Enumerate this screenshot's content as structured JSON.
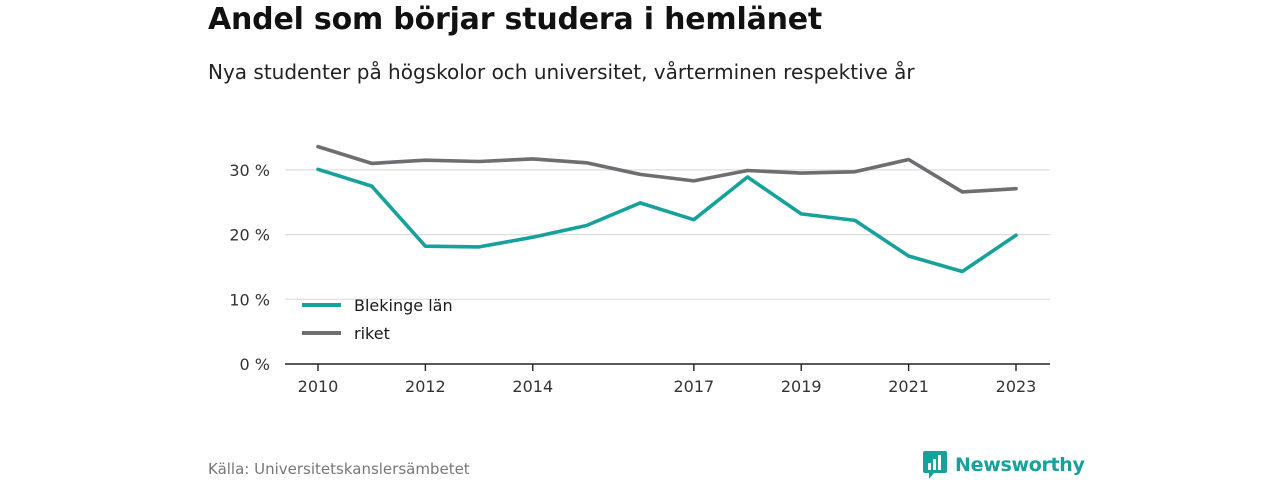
{
  "header": {
    "title": "Andel som börjar studera i hemlänet",
    "subtitle": "Nya studenter på högskolor och universitet, vårterminen respektive år"
  },
  "footer": {
    "source": "Källa: Universitetskanslersämbetet",
    "brand": "Newsworthy",
    "brand_icon": "bar-chart-speech-icon"
  },
  "colors": {
    "blekinge": "#16a29a",
    "riket": "#6d6d72",
    "grid": "#dddddd",
    "axis": "#222222",
    "brand": "#16a29a"
  },
  "chart_data": {
    "type": "line",
    "title": "Andel som börjar studera i hemlänet",
    "subtitle": "Nya studenter på högskolor och universitet, vårterminen respektive år",
    "x": [
      2010,
      2011,
      2012,
      2013,
      2014,
      2015,
      2016,
      2017,
      2018,
      2019,
      2020,
      2021,
      2022,
      2023
    ],
    "x_tick_values": [
      2010,
      2012,
      2014,
      2017,
      2019,
      2021,
      2023
    ],
    "x_tick_labels": [
      "2010",
      "2012",
      "2014",
      "2017",
      "2019",
      "2021",
      "2023"
    ],
    "y_tick_values": [
      0,
      10,
      20,
      30
    ],
    "y_tick_labels": [
      "0 %",
      "10 %",
      "20 %",
      "30 %"
    ],
    "ylim": [
      0,
      33
    ],
    "grid": true,
    "legend_placement": "bottom-left",
    "series": [
      {
        "name": "Blekinge län",
        "color": "#16a29a",
        "values": [
          30.1,
          27.5,
          18.2,
          18.1,
          19.6,
          21.4,
          24.9,
          22.3,
          28.9,
          23.2,
          22.2,
          16.7,
          14.3,
          19.9
        ]
      },
      {
        "name": "riket",
        "color": "#6d6d72",
        "values": [
          33.6,
          31.0,
          31.5,
          31.3,
          31.7,
          31.1,
          29.3,
          28.3,
          29.9,
          29.5,
          29.7,
          31.6,
          26.6,
          27.1
        ]
      }
    ]
  }
}
